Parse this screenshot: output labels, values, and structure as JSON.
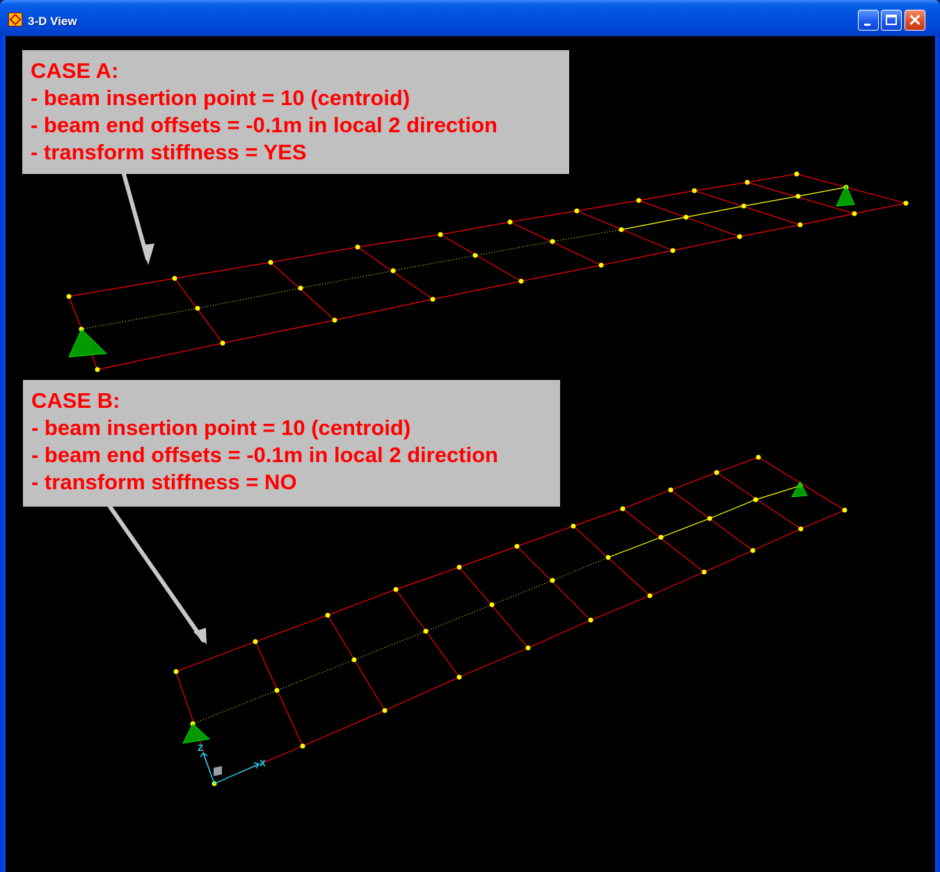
{
  "window": {
    "title": "3-D View",
    "icon": "sap2000-app-icon"
  },
  "titlebar_buttons": [
    "minimize-icon",
    "maximize-icon",
    "close-icon"
  ],
  "case_a": {
    "heading": "CASE A:",
    "lines": [
      "- beam insertion point = 10 (centroid)",
      "- beam end offsets = -0.1m in local 2 direction",
      "- transform stiffness = YES"
    ]
  },
  "case_b": {
    "heading": "CASE B:",
    "lines": [
      "- beam insertion point = 10 (centroid)",
      "- beam end offsets = -0.1m in local 2 direction",
      "- transform stiffness = NO"
    ]
  },
  "axes": {
    "z_label": "Z",
    "x_label": "X"
  },
  "colors": {
    "background": "#000000",
    "mesh": "#ff0000",
    "joints": "#ffff00",
    "supports": "#00b000",
    "axes": "#00e0ff",
    "note_bg": "#c0c0c0",
    "note_text": "#ff0000"
  }
}
